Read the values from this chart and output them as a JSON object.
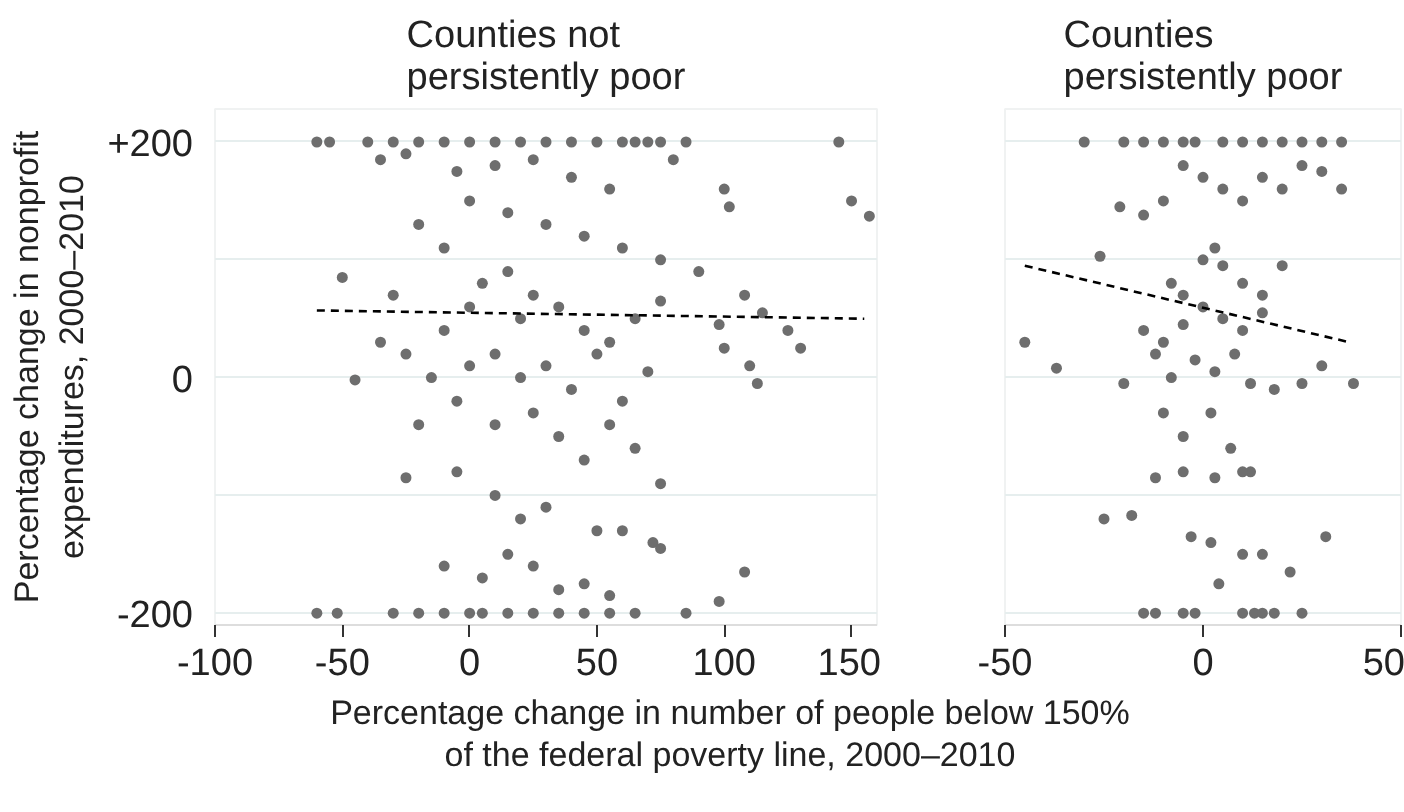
{
  "chart_data": [
    {
      "type": "scatter",
      "title": "Counties not persistently poor",
      "ylabel": "Percentage change in nonprofit expenditures, 2000–2010",
      "xlabel": "Percentage change in number of people below 150% of the federal poverty line, 2000–2010",
      "xlim": [
        -100,
        160
      ],
      "xticks": [
        -100,
        -50,
        0,
        50,
        100,
        150
      ],
      "ylim": [
        -210,
        228
      ],
      "yticks": [
        {
          "value": 200,
          "label": "+200"
        },
        {
          "value": 100,
          "label": null
        },
        0,
        {
          "value": -100,
          "label": null
        },
        -200
      ],
      "grid": "y",
      "series": [
        {
          "marker": "circle",
          "color": "#6e6e6e",
          "x": [
            -60,
            -55,
            -40,
            -30,
            -20,
            -10,
            0,
            10,
            20,
            30,
            40,
            50,
            60,
            65,
            70,
            75,
            85,
            145,
            -60,
            -52,
            -30,
            -20,
            -10,
            0,
            5,
            15,
            25,
            35,
            45,
            55,
            65,
            85,
            -35,
            -25,
            -5,
            10,
            25,
            40,
            55,
            80,
            100,
            102,
            150,
            157,
            -50,
            -30,
            -20,
            -10,
            0,
            15,
            30,
            45,
            60,
            75,
            90,
            -45,
            -25,
            -10,
            0,
            5,
            15,
            20,
            25,
            35,
            45,
            55,
            65,
            75,
            98,
            108,
            115,
            125,
            130,
            100,
            110,
            113,
            -35,
            -15,
            0,
            10,
            20,
            30,
            40,
            50,
            60,
            70,
            -20,
            -5,
            10,
            25,
            35,
            45,
            55,
            65,
            75,
            -25,
            -5,
            10,
            20,
            30,
            50,
            60,
            72,
            75,
            -10,
            5,
            15,
            25,
            35,
            45,
            55,
            108,
            98
          ],
          "values": [
            200,
            200,
            200,
            200,
            200,
            200,
            200,
            200,
            200,
            200,
            200,
            200,
            200,
            200,
            200,
            200,
            200,
            200,
            -200,
            -200,
            -200,
            -200,
            -200,
            -200,
            -200,
            -200,
            -200,
            -200,
            -200,
            -200,
            -200,
            -200,
            185,
            190,
            175,
            180,
            185,
            170,
            160,
            185,
            160,
            145,
            150,
            137,
            85,
            70,
            130,
            110,
            150,
            140,
            130,
            120,
            110,
            100,
            90,
            -2,
            20,
            40,
            60,
            80,
            90,
            50,
            70,
            60,
            40,
            30,
            50,
            65,
            45,
            70,
            55,
            40,
            25,
            25,
            10,
            -5,
            30,
            0,
            10,
            20,
            0,
            10,
            -10,
            20,
            -20,
            5,
            -40,
            -20,
            -40,
            -30,
            -50,
            -70,
            -40,
            -60,
            -90,
            -85,
            -80,
            -100,
            -120,
            -110,
            -130,
            -130,
            -140,
            -145,
            -160,
            -170,
            -150,
            -160,
            -180,
            -175,
            -185,
            -165,
            -190
          ]
        },
        {
          "type": "line",
          "line_style": "dashed",
          "color": "#000000",
          "x": [
            -60,
            155
          ],
          "values": [
            57,
            50
          ]
        }
      ]
    },
    {
      "type": "scatter",
      "title": "Counties persistently poor",
      "xlim": [
        -50,
        50
      ],
      "xticks": [
        -50,
        0,
        50
      ],
      "ylim": [
        -210,
        228
      ],
      "yticks": [
        200,
        100,
        0,
        -100,
        -200
      ],
      "tick_labels": "x",
      "grid": "y",
      "series": [
        {
          "marker": "circle",
          "color": "#6e6e6e",
          "x": [
            -30,
            -20,
            -15,
            -10,
            -5,
            -2,
            5,
            10,
            15,
            20,
            25,
            30,
            35,
            -15,
            -12,
            -5,
            -2,
            10,
            13,
            15,
            18,
            25,
            -45,
            -37,
            -26,
            -25,
            -18,
            -21,
            -15,
            -10,
            -5,
            0,
            5,
            10,
            15,
            20,
            25,
            30,
            35,
            -8,
            -5,
            0,
            3,
            5,
            10,
            15,
            20,
            -15,
            -10,
            -5,
            0,
            5,
            10,
            15,
            -12,
            -8,
            -2,
            3,
            8,
            12,
            18,
            25,
            30,
            38,
            -20,
            -10,
            -5,
            2,
            7,
            12,
            -12,
            -5,
            3,
            10,
            -3,
            2,
            10,
            15,
            31,
            22,
            4
          ],
          "values": [
            200,
            200,
            200,
            200,
            200,
            200,
            200,
            200,
            200,
            200,
            200,
            200,
            200,
            -200,
            -200,
            -200,
            -200,
            -200,
            -200,
            -200,
            -200,
            -200,
            30,
            8,
            103,
            -120,
            -117,
            145,
            138,
            150,
            180,
            170,
            160,
            150,
            170,
            160,
            180,
            175,
            160,
            80,
            70,
            100,
            110,
            95,
            80,
            70,
            95,
            40,
            30,
            45,
            60,
            50,
            40,
            55,
            20,
            0,
            15,
            5,
            20,
            -5,
            -10,
            -5,
            10,
            -5,
            -5,
            -30,
            -50,
            -30,
            -60,
            -80,
            -85,
            -80,
            -85,
            -80,
            -135,
            -140,
            -150,
            -150,
            -135,
            -165,
            -175
          ]
        },
        {
          "type": "line",
          "line_style": "dashed",
          "color": "#000000",
          "x": [
            -45,
            37
          ],
          "values": [
            95,
            30
          ]
        }
      ]
    }
  ]
}
